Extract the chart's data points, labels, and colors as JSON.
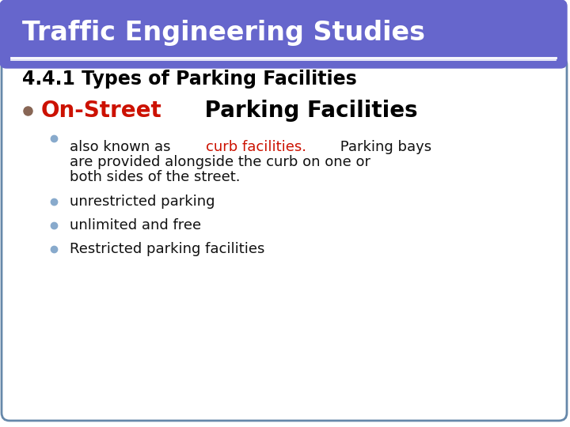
{
  "title": "Traffic Engineering Studies",
  "title_bg_color": "#6666cc",
  "title_text_color": "#ffffff",
  "slide_bg_color": "#ffffff",
  "border_color": "#6688aa",
  "heading": "4.4.1 Types of Parking Facilities",
  "heading_color": "#000000",
  "bullet1_red": "On-Street",
  "bullet1_red_color": "#cc1100",
  "bullet1_black": " Parking Facilities",
  "bullet1_black_color": "#000000",
  "bullet1_dot_color": "#886655",
  "sub_dot_color": "#88aacc",
  "sub_text_color": "#111111",
  "sub1_before": "also known as ",
  "sub1_red": "curb facilities.",
  "sub1_red_color": "#cc1100",
  "sub1_line2": " Parking bays",
  "sub1_line3": "are provided alongside the curb on one or",
  "sub1_line4": "both sides of the street.",
  "sub2": "unrestricted parking",
  "sub3": "unlimited and free",
  "sub4": "Restricted parking facilities",
  "title_fontsize": 24,
  "heading_fontsize": 17,
  "bullet1_fontsize": 20,
  "sub_fontsize": 13
}
